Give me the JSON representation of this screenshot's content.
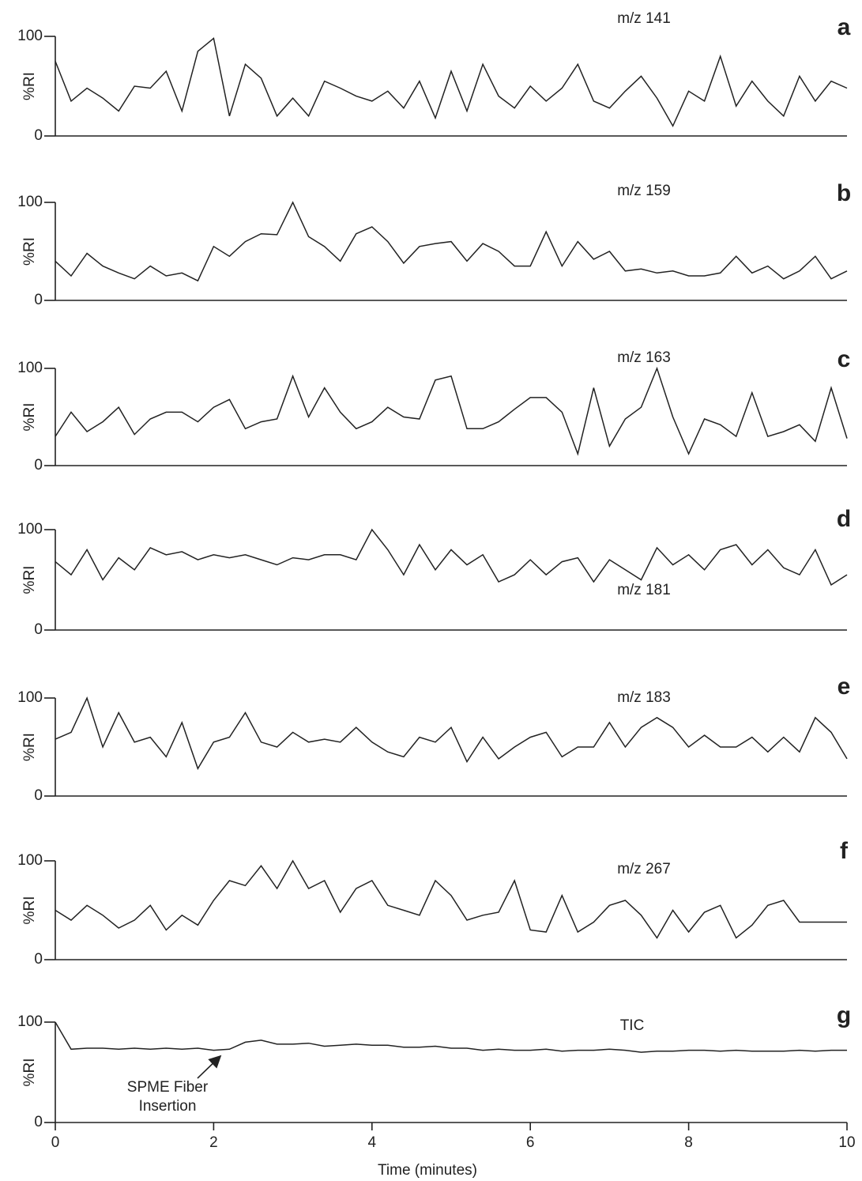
{
  "chart_data": [
    {
      "type": "line",
      "panel": "a",
      "annotation": "m/z 141",
      "ylabel": "%RI",
      "ylim": [
        0,
        100
      ],
      "yticks": [
        0,
        100
      ],
      "xlim": [
        0,
        10
      ],
      "x": [
        0,
        0.2,
        0.4,
        0.6,
        0.8,
        1,
        1.2,
        1.4,
        1.6,
        1.8,
        2,
        2.2,
        2.4,
        2.6,
        2.8,
        3,
        3.2,
        3.4,
        3.6,
        3.8,
        4,
        4.2,
        4.4,
        4.6,
        4.8,
        5,
        5.2,
        5.4,
        5.6,
        5.8,
        6,
        6.2,
        6.4,
        6.6,
        6.8,
        7,
        7.2,
        7.4,
        7.6,
        7.8,
        8,
        8.2,
        8.4,
        8.6,
        8.8,
        9,
        9.2,
        9.4,
        9.6,
        9.8,
        10
      ],
      "series": [
        {
          "color": "#222222",
          "values": [
            75,
            35,
            48,
            38,
            25,
            50,
            48,
            65,
            25,
            85,
            98,
            20,
            72,
            58,
            20,
            38,
            20,
            55,
            48,
            40,
            35,
            45,
            28,
            55,
            18,
            65,
            25,
            72,
            40,
            28,
            50,
            35,
            48,
            72,
            35,
            28,
            45,
            60,
            38,
            10,
            45,
            35,
            80,
            30,
            55,
            35,
            20,
            60,
            35,
            55,
            48
          ]
        }
      ]
    },
    {
      "type": "line",
      "panel": "b",
      "annotation": "m/z 159",
      "ylabel": "%RI",
      "ylim": [
        0,
        100
      ],
      "yticks": [
        0,
        100
      ],
      "xlim": [
        0,
        10
      ],
      "x": [
        0,
        0.2,
        0.4,
        0.6,
        0.8,
        1,
        1.2,
        1.4,
        1.6,
        1.8,
        2,
        2.2,
        2.4,
        2.6,
        2.8,
        3,
        3.2,
        3.4,
        3.6,
        3.8,
        4,
        4.2,
        4.4,
        4.6,
        4.8,
        5,
        5.2,
        5.4,
        5.6,
        5.8,
        6,
        6.2,
        6.4,
        6.6,
        6.8,
        7,
        7.2,
        7.4,
        7.6,
        7.8,
        8,
        8.2,
        8.4,
        8.6,
        8.8,
        9,
        9.2,
        9.4,
        9.6,
        9.8,
        10
      ],
      "series": [
        {
          "color": "#222222",
          "values": [
            40,
            25,
            48,
            35,
            28,
            22,
            35,
            25,
            28,
            20,
            55,
            45,
            60,
            68,
            67,
            100,
            65,
            55,
            40,
            68,
            75,
            60,
            38,
            55,
            58,
            60,
            40,
            58,
            50,
            35,
            35,
            70,
            35,
            60,
            42,
            50,
            30,
            32,
            28,
            30,
            25,
            25,
            28,
            45,
            28,
            35,
            22,
            30,
            45,
            22,
            30
          ]
        }
      ]
    },
    {
      "type": "line",
      "panel": "c",
      "annotation": "m/z 163",
      "ylabel": "%RI",
      "ylim": [
        0,
        100
      ],
      "yticks": [
        0,
        100
      ],
      "xlim": [
        0,
        10
      ],
      "x": [
        0,
        0.2,
        0.4,
        0.6,
        0.8,
        1,
        1.2,
        1.4,
        1.6,
        1.8,
        2,
        2.2,
        2.4,
        2.6,
        2.8,
        3,
        3.2,
        3.4,
        3.6,
        3.8,
        4,
        4.2,
        4.4,
        4.6,
        4.8,
        5,
        5.2,
        5.4,
        5.6,
        5.8,
        6,
        6.2,
        6.4,
        6.6,
        6.8,
        7,
        7.2,
        7.4,
        7.6,
        7.8,
        8,
        8.2,
        8.4,
        8.6,
        8.8,
        9,
        9.2,
        9.4,
        9.6,
        9.8,
        10
      ],
      "series": [
        {
          "color": "#222222",
          "values": [
            30,
            55,
            35,
            45,
            60,
            32,
            48,
            55,
            55,
            45,
            60,
            68,
            38,
            45,
            48,
            92,
            50,
            80,
            55,
            38,
            45,
            60,
            50,
            48,
            88,
            92,
            38,
            38,
            45,
            58,
            70,
            70,
            55,
            12,
            80,
            20,
            48,
            60,
            100,
            50,
            12,
            48,
            42,
            30,
            75,
            30,
            35,
            42,
            25,
            80,
            28
          ]
        }
      ]
    },
    {
      "type": "line",
      "panel": "d",
      "annotation": "m/z 181",
      "ylabel": "%RI",
      "ylim": [
        0,
        100
      ],
      "yticks": [
        0,
        100
      ],
      "xlim": [
        0,
        10
      ],
      "x": [
        0,
        0.2,
        0.4,
        0.6,
        0.8,
        1,
        1.2,
        1.4,
        1.6,
        1.8,
        2,
        2.2,
        2.4,
        2.6,
        2.8,
        3,
        3.2,
        3.4,
        3.6,
        3.8,
        4,
        4.2,
        4.4,
        4.6,
        4.8,
        5,
        5.2,
        5.4,
        5.6,
        5.8,
        6,
        6.2,
        6.4,
        6.6,
        6.8,
        7,
        7.2,
        7.4,
        7.6,
        7.8,
        8,
        8.2,
        8.4,
        8.6,
        8.8,
        9,
        9.2,
        9.4,
        9.6,
        9.8,
        10
      ],
      "series": [
        {
          "color": "#222222",
          "values": [
            68,
            55,
            80,
            50,
            72,
            60,
            82,
            75,
            78,
            70,
            75,
            72,
            75,
            70,
            65,
            72,
            70,
            75,
            75,
            70,
            100,
            80,
            55,
            85,
            60,
            80,
            65,
            75,
            48,
            55,
            70,
            55,
            68,
            72,
            48,
            70,
            60,
            50,
            82,
            65,
            75,
            60,
            80,
            85,
            65,
            80,
            62,
            55,
            80,
            45,
            55
          ]
        }
      ]
    },
    {
      "type": "line",
      "panel": "e",
      "annotation": "m/z 183",
      "ylabel": "%RI",
      "ylim": [
        0,
        100
      ],
      "yticks": [
        0,
        100
      ],
      "xlim": [
        0,
        10
      ],
      "x": [
        0,
        0.2,
        0.4,
        0.6,
        0.8,
        1,
        1.2,
        1.4,
        1.6,
        1.8,
        2,
        2.2,
        2.4,
        2.6,
        2.8,
        3,
        3.2,
        3.4,
        3.6,
        3.8,
        4,
        4.2,
        4.4,
        4.6,
        4.8,
        5,
        5.2,
        5.4,
        5.6,
        5.8,
        6,
        6.2,
        6.4,
        6.6,
        6.8,
        7,
        7.2,
        7.4,
        7.6,
        7.8,
        8,
        8.2,
        8.4,
        8.6,
        8.8,
        9,
        9.2,
        9.4,
        9.6,
        9.8,
        10
      ],
      "series": [
        {
          "color": "#222222",
          "values": [
            58,
            65,
            100,
            50,
            85,
            55,
            60,
            40,
            75,
            28,
            55,
            60,
            85,
            55,
            50,
            65,
            55,
            58,
            55,
            70,
            55,
            45,
            40,
            60,
            55,
            70,
            35,
            60,
            38,
            50,
            60,
            65,
            40,
            50,
            50,
            75,
            50,
            70,
            80,
            70,
            50,
            62,
            50,
            50,
            60,
            45,
            60,
            45,
            80,
            65,
            38
          ]
        }
      ]
    },
    {
      "type": "line",
      "panel": "f",
      "annotation": "m/z 267",
      "ylabel": "%RI",
      "ylim": [
        0,
        100
      ],
      "yticks": [
        0,
        100
      ],
      "xlim": [
        0,
        10
      ],
      "x": [
        0,
        0.2,
        0.4,
        0.6,
        0.8,
        1,
        1.2,
        1.4,
        1.6,
        1.8,
        2,
        2.2,
        2.4,
        2.6,
        2.8,
        3,
        3.2,
        3.4,
        3.6,
        3.8,
        4,
        4.2,
        4.4,
        4.6,
        4.8,
        5,
        5.2,
        5.4,
        5.6,
        5.8,
        6,
        6.2,
        6.4,
        6.6,
        6.8,
        7,
        7.2,
        7.4,
        7.6,
        7.8,
        8,
        8.2,
        8.4,
        8.6,
        8.8,
        9,
        9.2,
        9.4,
        9.6,
        9.8,
        10
      ],
      "series": [
        {
          "color": "#222222",
          "values": [
            50,
            40,
            55,
            45,
            32,
            40,
            55,
            30,
            45,
            35,
            60,
            80,
            75,
            95,
            72,
            100,
            72,
            80,
            48,
            72,
            80,
            55,
            50,
            45,
            80,
            65,
            40,
            45,
            48,
            80,
            30,
            28,
            65,
            28,
            38,
            55,
            60,
            45,
            22,
            50,
            28,
            48,
            55,
            22,
            35,
            55,
            60,
            38,
            38,
            38,
            38
          ]
        }
      ]
    },
    {
      "type": "line",
      "panel": "g",
      "annotation": "TIC",
      "arrow_annotation": [
        "SPME Fiber",
        "Insertion"
      ],
      "ylabel": "%RI",
      "ylim": [
        0,
        100
      ],
      "yticks": [
        0,
        100
      ],
      "xlim": [
        0,
        10
      ],
      "xticks": [
        0,
        2,
        4,
        6,
        8,
        10
      ],
      "xlabel": "Time (minutes)",
      "x": [
        0,
        0.2,
        0.4,
        0.6,
        0.8,
        1,
        1.2,
        1.4,
        1.6,
        1.8,
        2,
        2.2,
        2.4,
        2.6,
        2.8,
        3,
        3.2,
        3.4,
        3.6,
        3.8,
        4,
        4.2,
        4.4,
        4.6,
        4.8,
        5,
        5.2,
        5.4,
        5.6,
        5.8,
        6,
        6.2,
        6.4,
        6.6,
        6.8,
        7,
        7.2,
        7.4,
        7.6,
        7.8,
        8,
        8.2,
        8.4,
        8.6,
        8.8,
        9,
        9.2,
        9.4,
        9.6,
        9.8,
        10
      ],
      "series": [
        {
          "color": "#222222",
          "values": [
            100,
            73,
            74,
            74,
            73,
            74,
            73,
            74,
            73,
            74,
            72,
            73,
            80,
            82,
            78,
            78,
            79,
            76,
            77,
            78,
            77,
            77,
            75,
            75,
            76,
            74,
            74,
            72,
            73,
            72,
            72,
            73,
            71,
            72,
            72,
            73,
            72,
            70,
            71,
            71,
            72,
            72,
            71,
            72,
            71,
            71,
            71,
            72,
            71,
            72,
            72
          ]
        }
      ]
    }
  ]
}
